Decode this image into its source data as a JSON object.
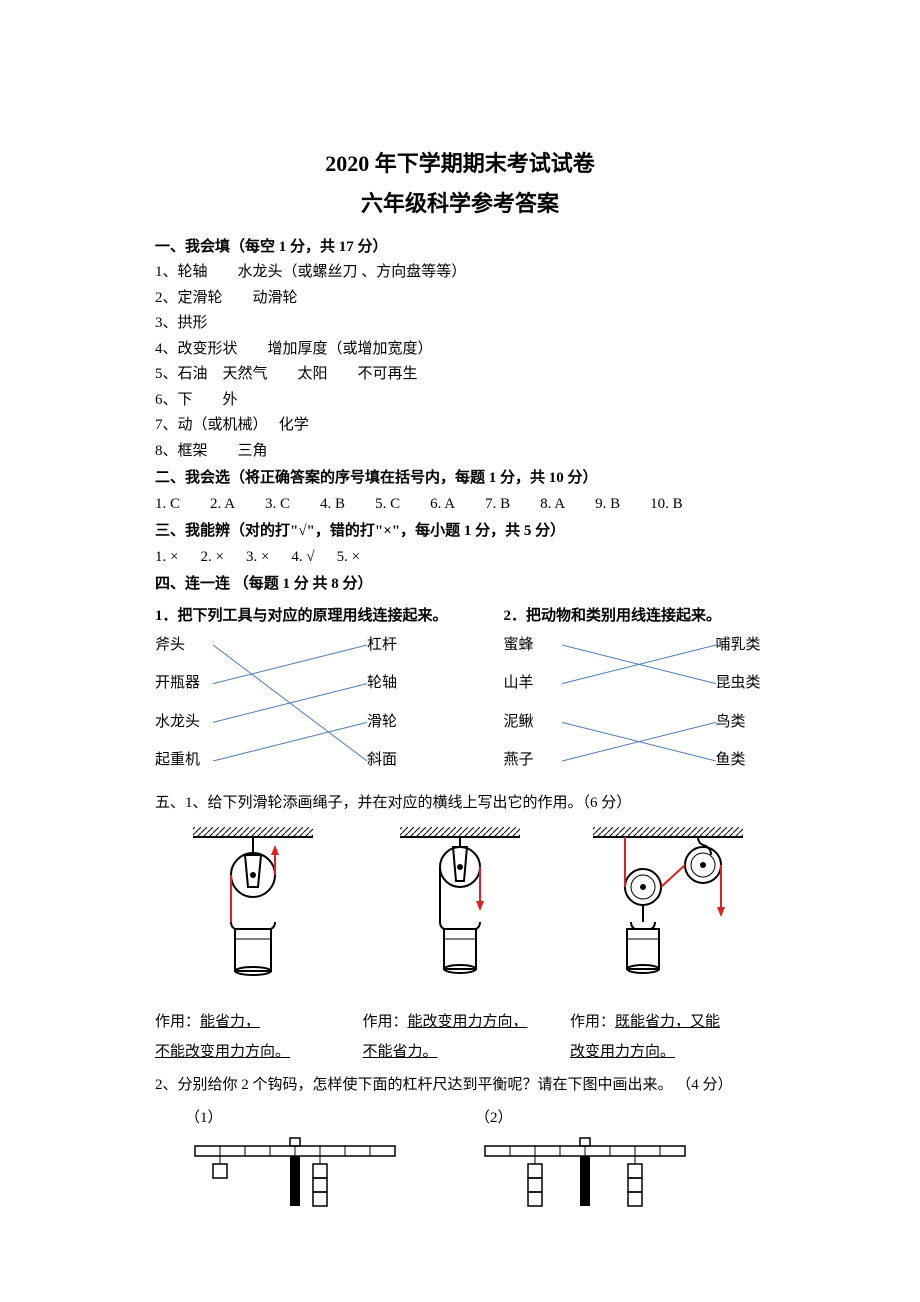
{
  "title": "2020 年下学期期末考试试卷",
  "subtitle": "六年级科学参考答案",
  "section1": {
    "heading": "一、我会填（每空 1 分，共 17 分）",
    "items": [
      "1、轮轴　　水龙头（或螺丝刀 、方向盘等等）",
      "2、定滑轮　　动滑轮",
      "3、拱形",
      "4、改变形状　　增加厚度（或增加宽度）",
      "5、石油　天然气　　太阳　　不可再生",
      "6、下　　外",
      "7、动（或机械）　 化学",
      "8、框架　　三角"
    ]
  },
  "section2": {
    "heading": "二、我会选（将正确答案的序号填在括号内，每题 1 分，共 10 分）",
    "answers": [
      "1. C",
      "2. A",
      "3. C",
      "4. B",
      "5. C",
      "6. A",
      "7. B",
      "8. A",
      "9. B",
      "10. B"
    ]
  },
  "section3": {
    "heading": "三、我能辨（对的打\"√\"，错的打\"×\"，每小题 1 分，共 5 分）",
    "answers": [
      "1. ×",
      "2. ×",
      "3. ×",
      "4.  √",
      "5. ×"
    ]
  },
  "section4": {
    "heading": "四、连一连 （每题 1 分 共 8 分）",
    "q1": {
      "title": "1．把下列工具与对应的原理用线连接起来。",
      "left": [
        "斧头",
        "开瓶器",
        "水龙头",
        "起重机"
      ],
      "right": [
        "杠杆",
        "轮轴",
        "滑轮",
        "斜面"
      ],
      "lines": [
        [
          0,
          3
        ],
        [
          1,
          0
        ],
        [
          2,
          1
        ],
        [
          3,
          2
        ]
      ],
      "lineColor": "#4a7ab8"
    },
    "q2": {
      "title": "2．把动物和类别用线连接起来。",
      "left": [
        "蜜蜂",
        "山羊",
        "泥鳅",
        "燕子"
      ],
      "right": [
        "哺乳类",
        "昆虫类",
        "鸟类",
        "鱼类"
      ],
      "lines": [
        [
          0,
          1
        ],
        [
          1,
          0
        ],
        [
          2,
          3
        ],
        [
          3,
          2
        ]
      ],
      "lineColor": "#4a7ab8"
    }
  },
  "section5": {
    "heading": "五、1、给下列滑轮添画绳子，并在对应的横线上写出它的作用。（6 分）",
    "pulleys": [
      {
        "caption_prefix": "作用：",
        "caption1": "能省力，",
        "caption2": "不能改变用力方向。",
        "arrowColor": "#e02020"
      },
      {
        "caption_prefix": "作用：",
        "caption1": "能改变用力方向，",
        "caption2": "不能省力。",
        "arrowColor": "#e02020"
      },
      {
        "caption_prefix": "作用：",
        "caption1": "既能省力，又能",
        "caption2": "改变用力方向。",
        "arrowColor": "#e02020"
      }
    ],
    "q2heading": "2、分别给你 2 个钩码，怎样使下面的杠杆尺达到平衡呢？请在下图中画出来。 （4 分）",
    "levers": [
      {
        "label": "（1）"
      },
      {
        "label": "（2）"
      }
    ]
  },
  "colors": {
    "background": "#ffffff",
    "text": "#000000",
    "matchLine": "#4a7ab8",
    "arrow": "#e02020"
  }
}
